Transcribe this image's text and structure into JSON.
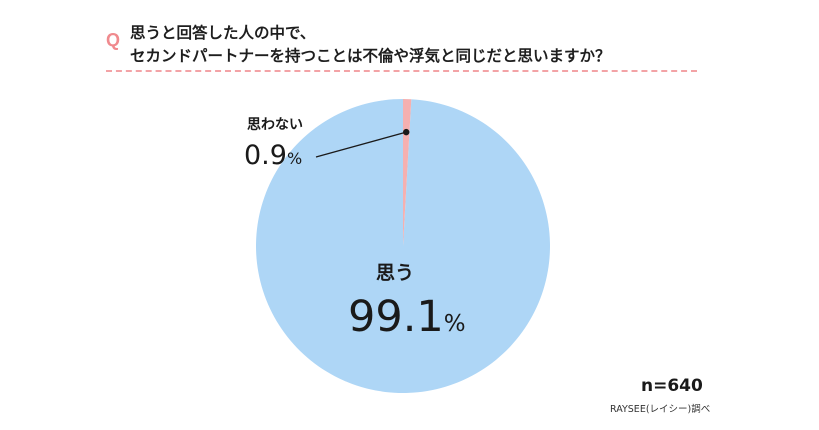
{
  "question": {
    "mark": "Q",
    "line1": "思うと回答した人の中で、",
    "line2": "セカンドパートナーを持つことは不倫や浮気と同じだと思いますか？"
  },
  "chart_data": {
    "type": "pie",
    "slices": [
      {
        "label": "思う",
        "value": 99.1,
        "display": "99.1",
        "color": "#aed6f6"
      },
      {
        "label": "思わない",
        "value": 0.9,
        "display": "0.9",
        "color": "#f5b0b0"
      }
    ],
    "unit": "%",
    "sample_size": "n=640",
    "source": "RAYSEE(レイシー)調べ"
  },
  "colors": {
    "title_accent": "#f08a8e",
    "dash_line": "#f3a3a6"
  }
}
